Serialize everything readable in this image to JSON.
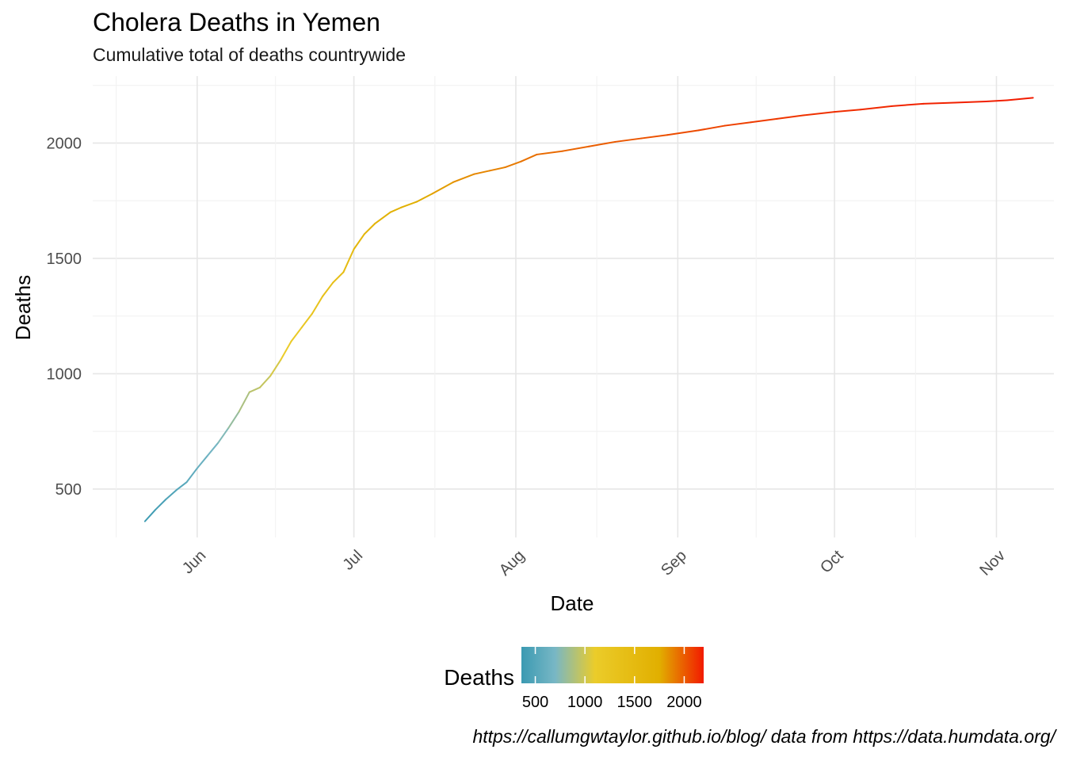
{
  "chart_data": {
    "type": "line",
    "title": "Cholera Deaths in Yemen",
    "subtitle": "Cumulative total of deaths countrywide",
    "xlabel": "Date",
    "ylabel": "Deaths",
    "caption": "https://callumgwtaylor.github.io/blog/ data from https://data.humdata.org/",
    "x_ticks": [
      "Jun",
      "Jul",
      "Aug",
      "Sep",
      "Oct",
      "Nov"
    ],
    "y_ticks": [
      500,
      1000,
      1500,
      2000
    ],
    "xlim": [
      "2017-05-12",
      "2017-11-12"
    ],
    "ylim": [
      290,
      2290
    ],
    "grid": true,
    "color_scale": {
      "title": "Deaths",
      "stops": [
        {
          "value": 360,
          "color": "#3B9AB2"
        },
        {
          "value": 700,
          "color": "#78B7C5"
        },
        {
          "value": 1100,
          "color": "#EBCC2A"
        },
        {
          "value": 1750,
          "color": "#E1AF00"
        },
        {
          "value": 2196,
          "color": "#F21A00"
        }
      ],
      "breaks": [
        500,
        1000,
        1500,
        2000
      ],
      "position": "bottom"
    },
    "series": [
      {
        "x": [
          "2017-05-22",
          "2017-05-24",
          "2017-05-26",
          "2017-05-28",
          "2017-05-30",
          "2017-06-01",
          "2017-06-03",
          "2017-06-05",
          "2017-06-07",
          "2017-06-09",
          "2017-06-11",
          "2017-06-13",
          "2017-06-15",
          "2017-06-17",
          "2017-06-19",
          "2017-06-21",
          "2017-06-23",
          "2017-06-25",
          "2017-06-27",
          "2017-06-29",
          "2017-07-01",
          "2017-07-03",
          "2017-07-05",
          "2017-07-08",
          "2017-07-10",
          "2017-07-13",
          "2017-07-16",
          "2017-07-20",
          "2017-07-24",
          "2017-07-27",
          "2017-07-30",
          "2017-08-02",
          "2017-08-05",
          "2017-08-10",
          "2017-08-15",
          "2017-08-20",
          "2017-08-25",
          "2017-08-30",
          "2017-09-05",
          "2017-09-10",
          "2017-09-15",
          "2017-09-20",
          "2017-09-25",
          "2017-10-01",
          "2017-10-06",
          "2017-10-12",
          "2017-10-18",
          "2017-10-24",
          "2017-10-30",
          "2017-11-03",
          "2017-11-08"
        ],
        "y": [
          360,
          410,
          455,
          495,
          530,
          590,
          645,
          700,
          765,
          835,
          920,
          940,
          990,
          1060,
          1140,
          1200,
          1260,
          1335,
          1395,
          1440,
          1540,
          1605,
          1650,
          1700,
          1720,
          1745,
          1780,
          1830,
          1865,
          1880,
          1895,
          1920,
          1950,
          1965,
          1985,
          2005,
          2020,
          2035,
          2055,
          2075,
          2090,
          2105,
          2120,
          2135,
          2145,
          2160,
          2170,
          2175,
          2180,
          2185,
          2196
        ]
      }
    ]
  }
}
